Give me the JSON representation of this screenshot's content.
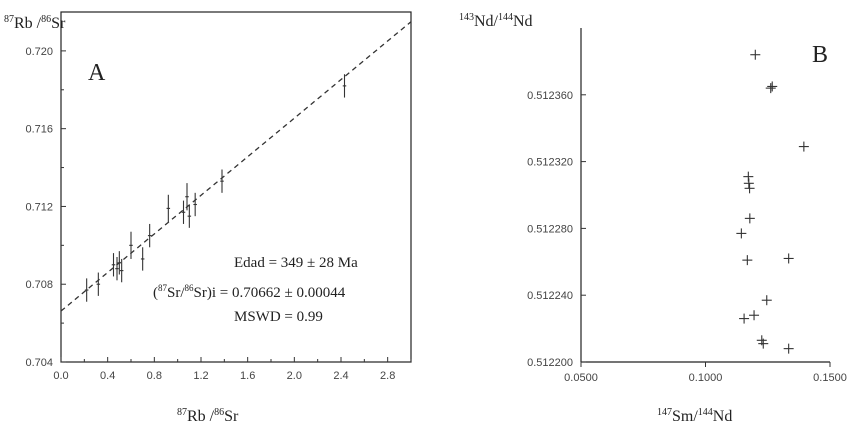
{
  "chart_data": [
    {
      "panel": "A",
      "type": "scatter",
      "xlabel": "87Rb /86Sr",
      "ylabel": "87Rb /86Sr",
      "xlim": [
        0.0,
        3.0
      ],
      "ylim": [
        0.704,
        0.722
      ],
      "x_ticks": [
        "0.0",
        "0.4",
        "0.8",
        "1.2",
        "1.6",
        "2.0",
        "2.4",
        "2.8"
      ],
      "y_ticks": [
        "0.704",
        "0.708",
        "0.712",
        "0.716",
        "0.720"
      ],
      "grid": false,
      "points": [
        {
          "x": 0.22,
          "y": 0.7077,
          "xerr": 0.015,
          "yerr": 0.0006
        },
        {
          "x": 0.32,
          "y": 0.708,
          "xerr": 0.015,
          "yerr": 0.0006
        },
        {
          "x": 0.45,
          "y": 0.709,
          "xerr": 0.015,
          "yerr": 0.0006
        },
        {
          "x": 0.48,
          "y": 0.7088,
          "xerr": 0.015,
          "yerr": 0.0006
        },
        {
          "x": 0.5,
          "y": 0.7091,
          "xerr": 0.015,
          "yerr": 0.0006
        },
        {
          "x": 0.52,
          "y": 0.7087,
          "xerr": 0.015,
          "yerr": 0.0006
        },
        {
          "x": 0.6,
          "y": 0.71,
          "xerr": 0.015,
          "yerr": 0.0007
        },
        {
          "x": 0.7,
          "y": 0.7093,
          "xerr": 0.015,
          "yerr": 0.0006
        },
        {
          "x": 0.76,
          "y": 0.7105,
          "xerr": 0.015,
          "yerr": 0.0006
        },
        {
          "x": 0.92,
          "y": 0.7119,
          "xerr": 0.015,
          "yerr": 0.0007
        },
        {
          "x": 1.05,
          "y": 0.7117,
          "xerr": 0.015,
          "yerr": 0.0006
        },
        {
          "x": 1.08,
          "y": 0.7125,
          "xerr": 0.015,
          "yerr": 0.0007
        },
        {
          "x": 1.1,
          "y": 0.7115,
          "xerr": 0.015,
          "yerr": 0.0006
        },
        {
          "x": 1.15,
          "y": 0.7121,
          "xerr": 0.015,
          "yerr": 0.0006
        },
        {
          "x": 1.38,
          "y": 0.7133,
          "xerr": 0.015,
          "yerr": 0.0006
        },
        {
          "x": 2.43,
          "y": 0.7182,
          "xerr": 0.015,
          "yerr": 0.0006
        }
      ],
      "fit_line": {
        "intercept": 0.70662,
        "slope": 0.00496
      },
      "annotations": {
        "age": "Edad = 349 ± 28 Ma",
        "initial_ratio_value": ")i = 0.70662 ± 0.00044",
        "mswd": "MSWD = 0.99"
      }
    },
    {
      "panel": "B",
      "type": "scatter",
      "xlabel": "147Sm/144Nd",
      "ylabel": "143Nd/144Nd",
      "xlim": [
        0.05,
        0.15
      ],
      "ylim": [
        0.5122,
        0.5124
      ],
      "x_ticks": [
        "0.0500",
        "0.1000",
        "0.1500"
      ],
      "y_ticks": [
        "0.512200",
        "0.512240",
        "0.512280",
        "0.512320",
        "0.512360"
      ],
      "grid": false,
      "points": [
        {
          "x": 0.12,
          "y": 0.512384
        },
        {
          "x": 0.1262,
          "y": 0.512364
        },
        {
          "x": 0.1268,
          "y": 0.512365
        },
        {
          "x": 0.1395,
          "y": 0.512329
        },
        {
          "x": 0.1172,
          "y": 0.512311
        },
        {
          "x": 0.1174,
          "y": 0.512307
        },
        {
          "x": 0.1177,
          "y": 0.512304
        },
        {
          "x": 0.1178,
          "y": 0.512286
        },
        {
          "x": 0.1144,
          "y": 0.512277
        },
        {
          "x": 0.1168,
          "y": 0.512261
        },
        {
          "x": 0.1334,
          "y": 0.512262
        },
        {
          "x": 0.1246,
          "y": 0.512237
        },
        {
          "x": 0.1195,
          "y": 0.512228
        },
        {
          "x": 0.1155,
          "y": 0.512226
        },
        {
          "x": 0.1226,
          "y": 0.512213
        },
        {
          "x": 0.1232,
          "y": 0.512211
        },
        {
          "x": 0.1334,
          "y": 0.512208
        }
      ]
    }
  ]
}
